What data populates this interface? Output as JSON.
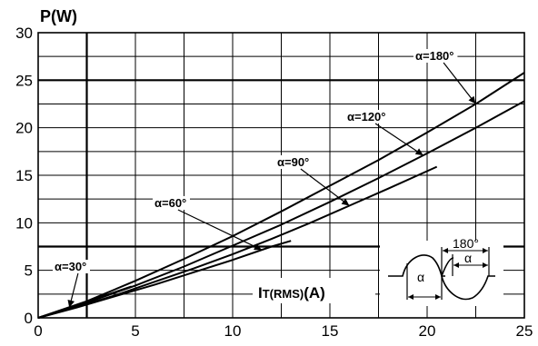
{
  "chart_data": {
    "type": "line",
    "title": "",
    "ylabel": "P(W)",
    "xlabel_main": "I",
    "xlabel_sub": "T(RMS)",
    "xlabel_unit": "(A)",
    "xlim": [
      0,
      25
    ],
    "ylim": [
      0,
      30
    ],
    "x_ticks": [
      0,
      5,
      10,
      15,
      20,
      25
    ],
    "y_ticks": [
      0,
      5,
      10,
      15,
      20,
      25,
      30
    ],
    "grid": true,
    "series": [
      {
        "name": "α=30°",
        "x": [
          0,
          1,
          2,
          3,
          4.8
        ],
        "y": [
          0,
          0.65,
          1.35,
          2.05,
          3.3
        ]
      },
      {
        "name": "α=60°",
        "x": [
          0,
          2,
          4,
          6,
          8,
          10,
          12,
          13
        ],
        "y": [
          0,
          1.1,
          2.3,
          3.5,
          4.8,
          6.1,
          7.5,
          8.1
        ]
      },
      {
        "name": "α=90°",
        "x": [
          0,
          2,
          4,
          6,
          8,
          10,
          12,
          14,
          16,
          18,
          20.5
        ],
        "y": [
          0,
          1.15,
          2.4,
          3.8,
          5.2,
          6.7,
          8.3,
          10.0,
          11.8,
          13.6,
          15.9
        ]
      },
      {
        "name": "α=120°",
        "x": [
          0,
          2.5,
          5,
          7.5,
          10,
          12.5,
          15,
          17.5,
          20,
          22.5,
          25
        ],
        "y": [
          0,
          1.6,
          3.4,
          5.4,
          7.6,
          9.8,
          12.2,
          14.7,
          17.3,
          20.0,
          22.8
        ]
      },
      {
        "name": "α=180°",
        "x": [
          0,
          2.5,
          5,
          7.5,
          10,
          12.5,
          15,
          17.5,
          20,
          22.5,
          25
        ],
        "y": [
          0,
          1.75,
          3.9,
          6.2,
          8.6,
          11.2,
          13.9,
          16.6,
          19.5,
          22.5,
          25.8
        ]
      }
    ],
    "inset": {
      "angle_label": "α",
      "period_label": "180°"
    }
  }
}
